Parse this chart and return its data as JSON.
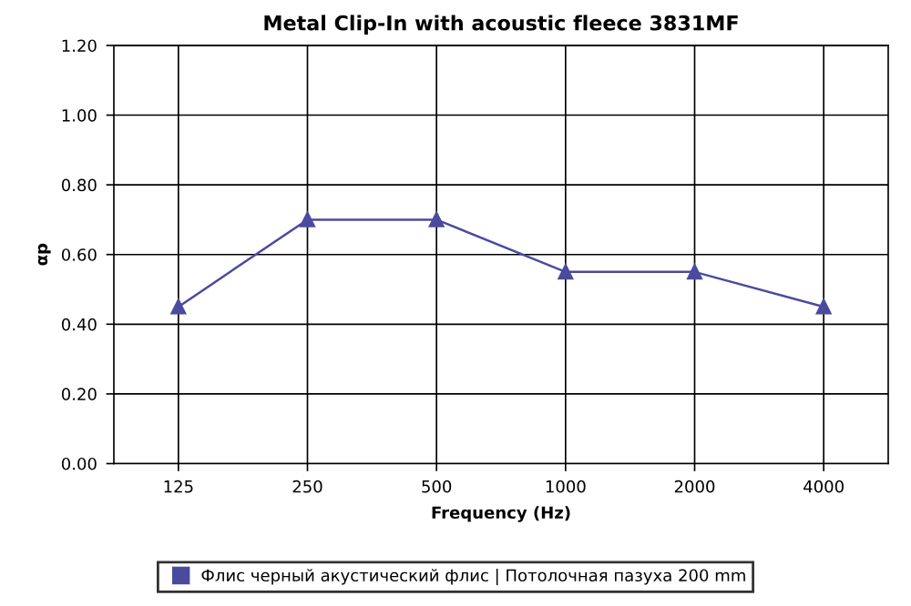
{
  "chart_data": {
    "type": "line",
    "title": "Metal Clip-In with acoustic fleece 3831MF",
    "xlabel": "Frequency (Hz)",
    "ylabel": "αp",
    "categories": [
      "125",
      "250",
      "500",
      "1000",
      "2000",
      "4000"
    ],
    "series": [
      {
        "name": "Флис черный акустический флис | Потолочная пазуха 200 mm",
        "color": "#4b4b9e",
        "values": [
          0.45,
          0.7,
          0.7,
          0.55,
          0.55,
          0.45
        ]
      }
    ],
    "ylim": [
      0,
      1.2
    ],
    "yticks": [
      {
        "value": 0,
        "label": "0.00"
      },
      {
        "value": 0.2,
        "label": "0.20"
      },
      {
        "value": 0.4,
        "label": "0.40"
      },
      {
        "value": 0.6,
        "label": "0.60"
      },
      {
        "value": 0.8,
        "label": "0.80"
      },
      {
        "value": 1.0,
        "label": "1.00"
      },
      {
        "value": 1.2,
        "label": "1.20"
      }
    ],
    "grid": true,
    "legend": "bottom",
    "marker": "triangle",
    "line_style": "solid"
  }
}
